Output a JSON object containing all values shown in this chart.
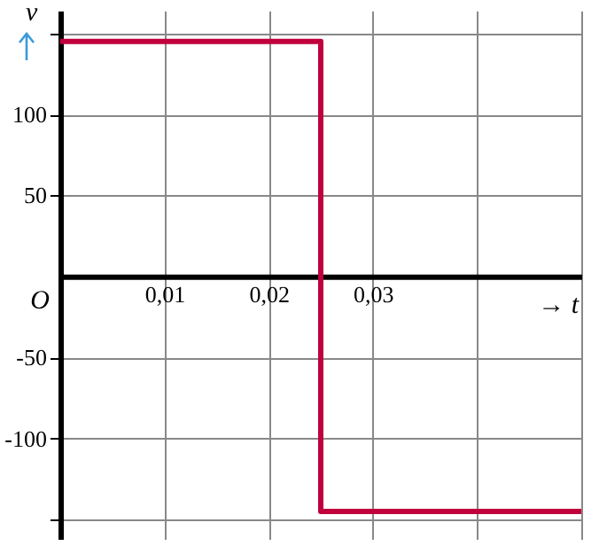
{
  "chart_data": {
    "type": "step",
    "xlabel": "→ t",
    "ylabel": "v",
    "x": [
      0,
      0.025,
      0.05
    ],
    "series": [
      {
        "color": "#c0003c",
        "values": [
          145,
          -145,
          -145
        ]
      }
    ],
    "xlim": [
      0,
      0.05
    ],
    "ylim": [
      -162,
      164
    ],
    "xticks": [
      {
        "value": 0.01,
        "label": "0,01"
      },
      {
        "value": 0.02,
        "label": "0,02"
      },
      {
        "value": 0.03,
        "label": "0,03"
      },
      {
        "value": 0.04,
        "label": null
      },
      {
        "value": 0.05,
        "label": null
      }
    ],
    "yticks": [
      {
        "value": -150,
        "label": null
      },
      -100,
      -50,
      50,
      100,
      {
        "value": 150,
        "label": null
      }
    ],
    "grid": true,
    "annotations": [
      "O"
    ]
  }
}
